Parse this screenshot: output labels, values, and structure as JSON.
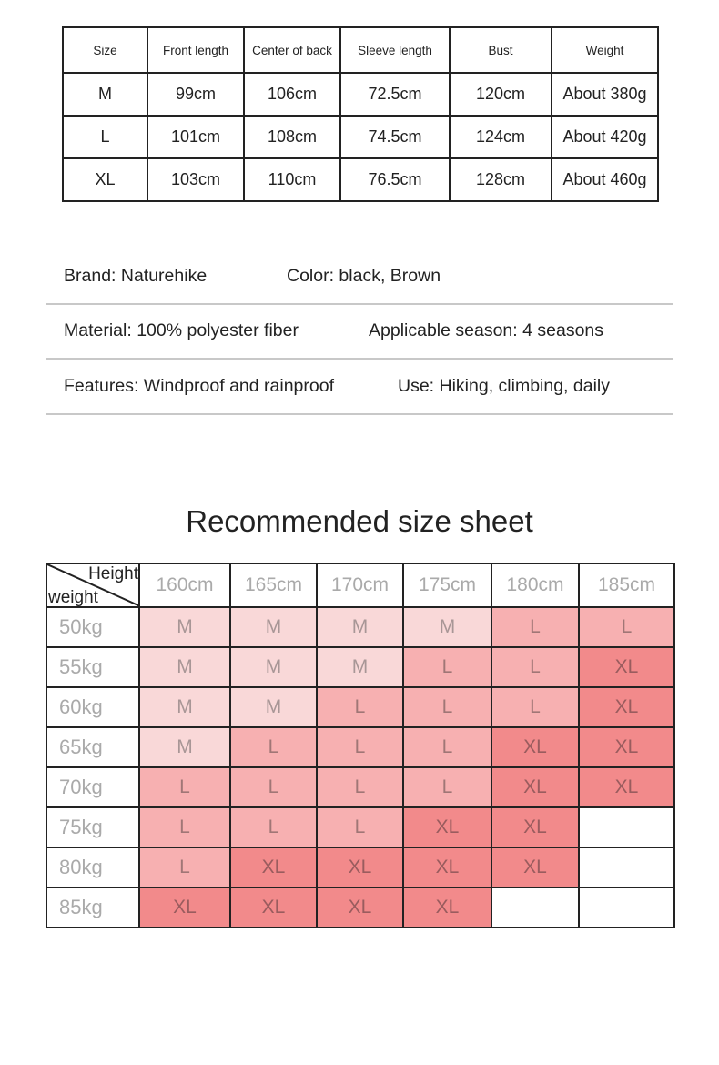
{
  "spec_table": {
    "headers": [
      "Size",
      "Front length",
      "Center of back",
      "Sleeve length",
      "Bust",
      "Weight"
    ],
    "rows": [
      [
        "M",
        "99cm",
        "106cm",
        "72.5cm",
        "120cm",
        "About 380g"
      ],
      [
        "L",
        "101cm",
        "108cm",
        "74.5cm",
        "124cm",
        "About 420g"
      ],
      [
        "XL",
        "103cm",
        "110cm",
        "76.5cm",
        "128cm",
        "About 460g"
      ]
    ]
  },
  "info": [
    [
      "Brand: Naturehike",
      "Color: black, Brown"
    ],
    [
      "Material: 100% polyester fiber",
      "Applicable season: 4 seasons"
    ],
    [
      "Features: Windproof and rainproof",
      "Use: Hiking, climbing, daily"
    ]
  ],
  "size_sheet": {
    "title": "Recommended size sheet",
    "corner_top": "Height",
    "corner_bottom": "weight",
    "heights": [
      "160cm",
      "165cm",
      "170cm",
      "175cm",
      "180cm",
      "185cm"
    ],
    "rows": [
      {
        "weight": "50kg",
        "sizes": [
          "M",
          "M",
          "M",
          "M",
          "L",
          "L"
        ]
      },
      {
        "weight": "55kg",
        "sizes": [
          "M",
          "M",
          "M",
          "L",
          "L",
          "XL"
        ]
      },
      {
        "weight": "60kg",
        "sizes": [
          "M",
          "M",
          "L",
          "L",
          "L",
          "XL"
        ]
      },
      {
        "weight": "65kg",
        "sizes": [
          "M",
          "L",
          "L",
          "L",
          "XL",
          "XL"
        ]
      },
      {
        "weight": "70kg",
        "sizes": [
          "L",
          "L",
          "L",
          "L",
          "XL",
          "XL"
        ]
      },
      {
        "weight": "75kg",
        "sizes": [
          "L",
          "L",
          "L",
          "XL",
          "XL",
          ""
        ]
      },
      {
        "weight": "80kg",
        "sizes": [
          "L",
          "XL",
          "XL",
          "XL",
          "XL",
          ""
        ]
      },
      {
        "weight": "85kg",
        "sizes": [
          "XL",
          "XL",
          "XL",
          "XL",
          "",
          ""
        ]
      }
    ],
    "colors": {
      "M": "#f9d8d8",
      "L": "#f7b0b1",
      "XL": "#f28a8b"
    }
  }
}
